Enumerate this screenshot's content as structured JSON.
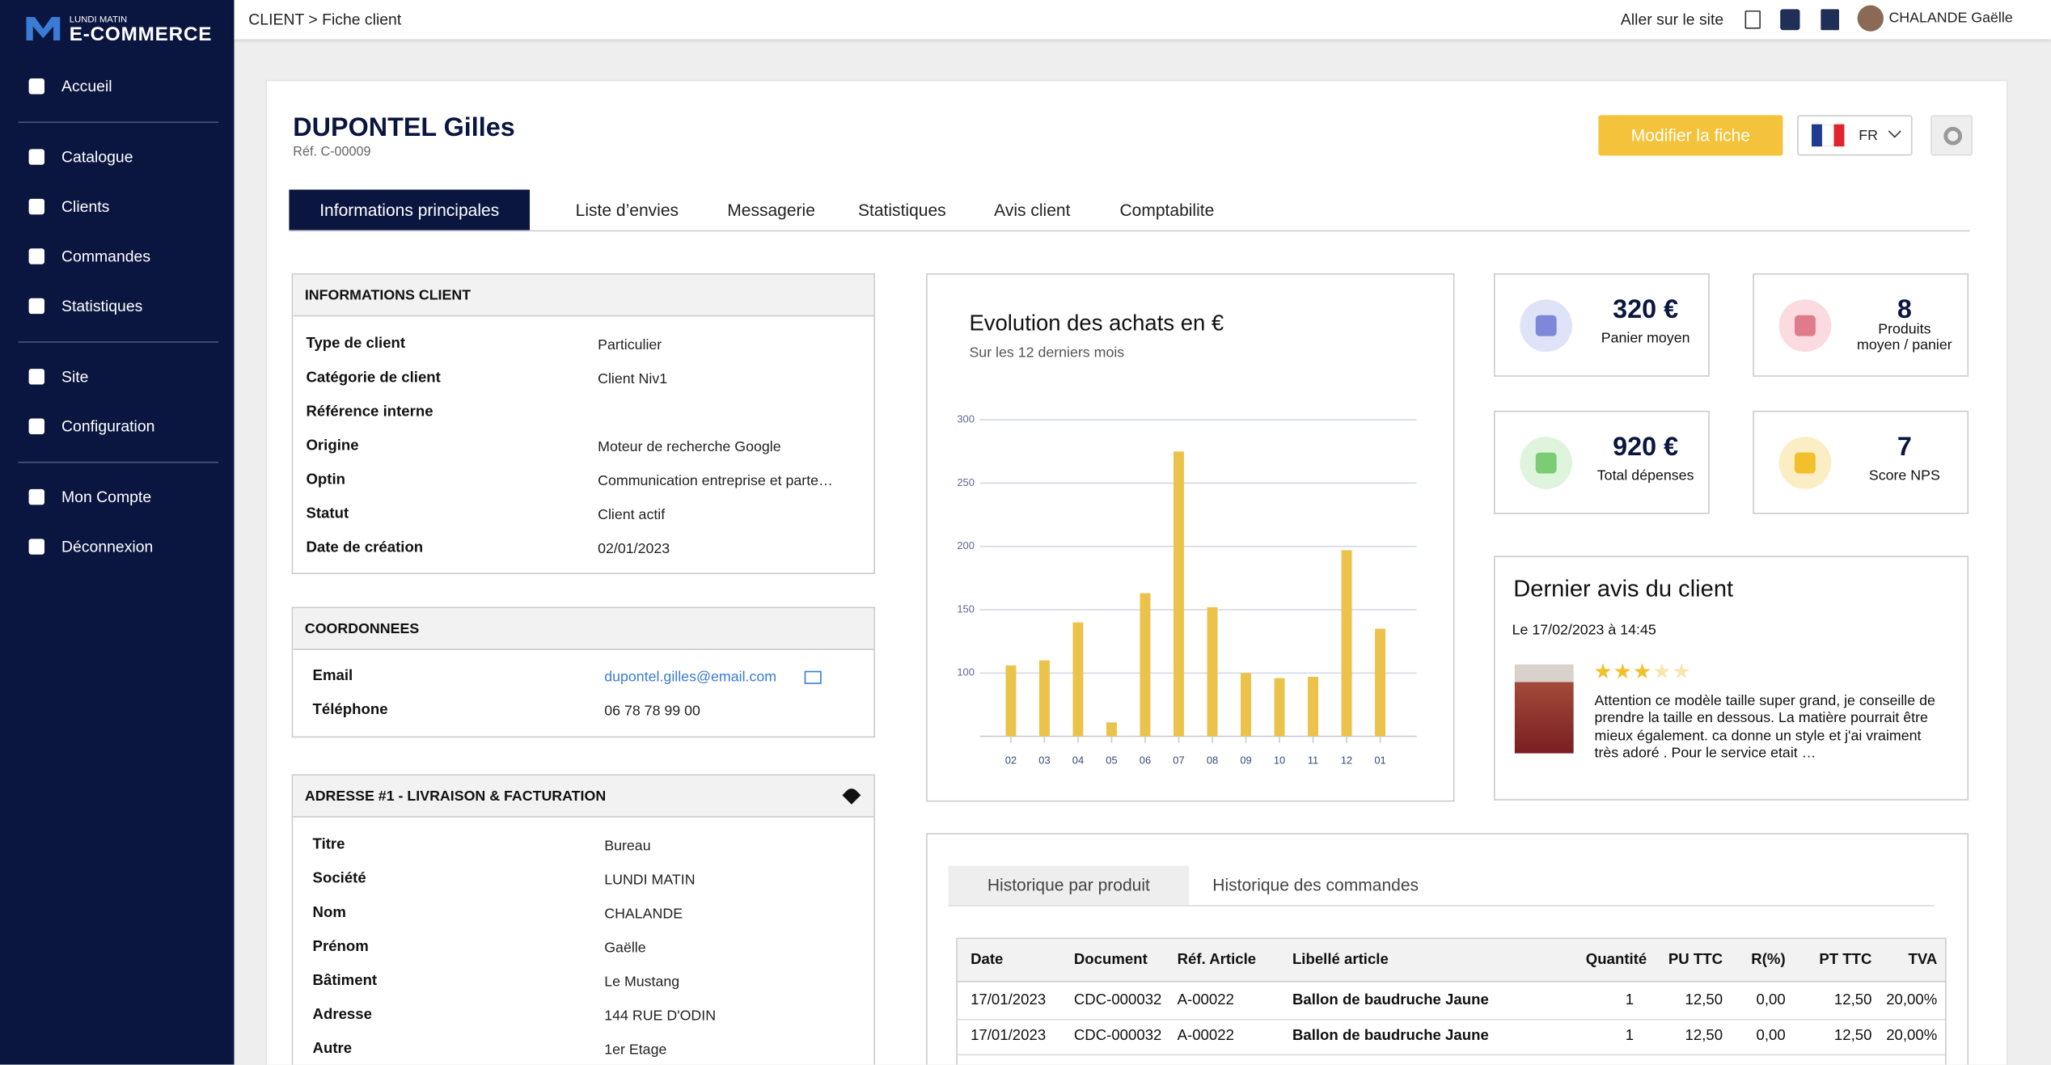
{
  "sidebar": {
    "logo_top": "LUNDI MATIN",
    "logo": "E-COMMERCE",
    "menu": [
      "Accueil",
      "Catalogue",
      "Clients",
      "Commandes",
      "Statistiques",
      "Site",
      "Configuration",
      "Mon Compte",
      "Déconnexion"
    ]
  },
  "header": {
    "breadcrumb": "CLIENT > Fiche client",
    "site_link": "Aller sur le site",
    "user": "CHALANDE Gaëlle"
  },
  "client": {
    "name": "DUPONTEL Gilles",
    "ref": "Réf. C-00009",
    "edit_button": "Modifier la fiche",
    "language": "FR"
  },
  "tabs": [
    "Informations principales",
    "Liste d’envies",
    "Messagerie",
    "Statistiques",
    "Avis client",
    "Comptabilite"
  ],
  "info_client": {
    "title": "INFORMATIONS CLIENT",
    "rows": [
      [
        "Type de client",
        "Particulier"
      ],
      [
        "Catégorie de client",
        "Client Niv1"
      ],
      [
        "Référence interne"
      ],
      [
        "Origine",
        "Moteur de recherche Google"
      ],
      [
        "Optin",
        "Communication entreprise et parte…"
      ],
      [
        "Statut",
        "Client actif"
      ],
      [
        "Date de création",
        "02/01/2023"
      ]
    ]
  },
  "coordonnees": {
    "title": "COORDONNEES",
    "rows": [
      [
        "Email",
        "dupontel.gilles@email.com"
      ],
      [
        "Téléphone",
        "06 78 78 99 00"
      ]
    ]
  },
  "address": {
    "title": "ADRESSE #1 - LIVRAISON & FACTURATION",
    "rows": [
      [
        "Titre",
        "Bureau"
      ],
      [
        "Société",
        "LUNDI MATIN"
      ],
      [
        "Nom",
        "CHALANDE"
      ],
      [
        "Prénom",
        "Gaëlle"
      ],
      [
        "Bâtiment",
        "Le Mustang"
      ],
      [
        "Adresse",
        "144 RUE D'ODIN"
      ],
      [
        "Autre",
        "1er Etage"
      ]
    ]
  },
  "chart_data": {
    "type": "bar",
    "title": "Evolution des achats en €",
    "subtitle": "Sur les 12 derniers mois",
    "categories": [
      "02",
      "03",
      "04",
      "05",
      "06",
      "07",
      "08",
      "09",
      "10",
      "11",
      "12",
      "01"
    ],
    "values": [
      106,
      110,
      140,
      61,
      163,
      275,
      152,
      100,
      96,
      97,
      197,
      135
    ],
    "color": "#ebc24a",
    "ylim": [
      50,
      300
    ],
    "yticks": [
      100,
      150,
      200,
      250,
      300
    ],
    "grid": true
  },
  "kpis": [
    {
      "value": "320 €",
      "label": "Panier moyen",
      "color": "#dfe3f7",
      "icon": "#7d88d8"
    },
    {
      "value": "8",
      "label": "Produits moyen / panier",
      "color": "#fbdbe0",
      "icon": "#e07b8c"
    },
    {
      "value": "920 €",
      "label": "Total dépenses",
      "color": "#dff4dc",
      "icon": "#7ccc76"
    },
    {
      "value": "7",
      "label": "Score NPS",
      "color": "#fbeec4",
      "icon": "#f2c02a"
    }
  ],
  "review": {
    "title": "Dernier avis du client",
    "date": "Le 17/02/2023 à 14:45",
    "rating": 3,
    "text": "Attention ce modèle taille super grand, je conseille de prendre la taille en dessous. La matière pourrait être mieux également. ca donne un style et j'ai vraiment très adoré . Pour le service etait …"
  },
  "history": {
    "tabs": [
      "Historique par produit",
      "Historique des commandes"
    ],
    "columns": [
      "Date",
      "Document",
      "Réf. Article",
      "Libellé article",
      "Quantité",
      "PU TTC",
      "R(%)",
      "PT TTC",
      "TVA"
    ],
    "rows": [
      [
        "17/01/2023",
        "CDC-000032",
        "A-00022",
        "Ballon de baudruche Jaune",
        "1",
        "12,50",
        "0,00",
        "12,50",
        "20,00%"
      ],
      [
        "17/01/2023",
        "CDC-000032",
        "A-00022",
        "Ballon de baudruche Jaune",
        "1",
        "12,50",
        "0,00",
        "12,50",
        "20,00%"
      ]
    ]
  }
}
